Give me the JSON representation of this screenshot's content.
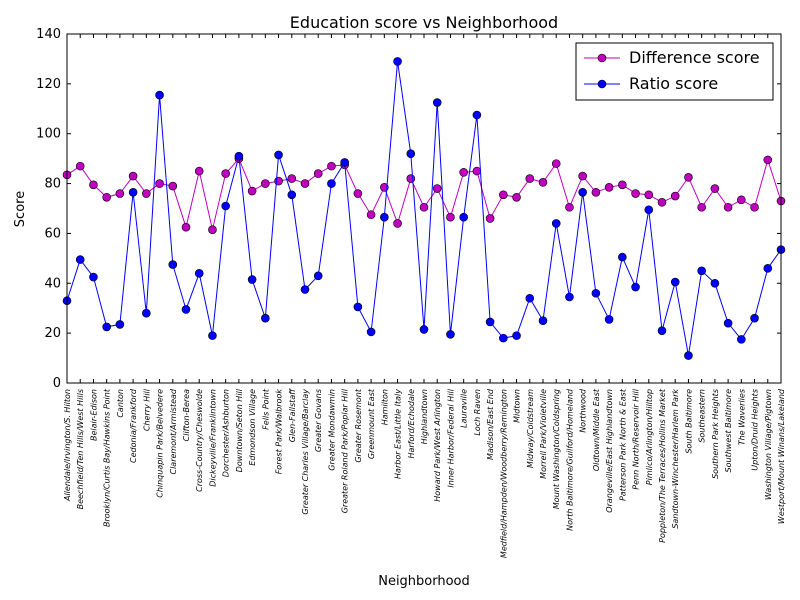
{
  "chart_data": {
    "type": "line",
    "title": "Education score vs Neighborhood",
    "xlabel": "Neighborhood",
    "ylabel": "Score",
    "ylim": [
      0,
      140
    ],
    "yticks": [
      0,
      20,
      40,
      60,
      80,
      100,
      120,
      140
    ],
    "grid": false,
    "legend_position": "top-right",
    "categories": [
      "Allendale/Irvington/S. Hilton",
      "Beechfield/Ten Hills/West Hills",
      "Belair-Edison",
      "Brooklyn/Curtis Bay/Hawkins Point",
      "Canton",
      "Cedonia/Frankford",
      "Cherry Hill",
      "Chinquapin Park/Belvedere",
      "Claremont/Armistead",
      "Clifton-Berea",
      "Cross-Country/Cheswolde",
      "Dickeyville/Franklintown",
      "Dorchester/Ashburton",
      "Downtown/Seton Hill",
      "Edmondson Village",
      "Fells Point",
      "Forest Park/Walbrook",
      "Glen-Fallstaff",
      "Greater Charles Village/Barclay",
      "Greater Govans",
      "Greater Mondawmin",
      "Greater Roland Park/Poplar Hill",
      "Greater Rosemont",
      "Greenmount East",
      "Hamilton",
      "Harbor East/Little Italy",
      "Harford/Echodale",
      "Highlandtown",
      "Howard Park/West Arlington",
      "Inner Harbor/Federal Hill",
      "Lauraville",
      "Loch Raven",
      "Madison/East End",
      "Medfield/Hampden/Woodberry/Remington",
      "Midtown",
      "Midway/Coldstream",
      "Morrell Park/Violetville",
      "Mount Washington/Coldspring",
      "North Baltimore/Guilford/Homeland",
      "Northwood",
      "Oldtown/Middle East",
      "Orangeville/East Highlandtown",
      "Patterson Park North & East",
      "Penn North/Reservoir Hill",
      "Pimlico/Arlington/Hilltop",
      "Poppleton/The Terraces/Hollins Market",
      "Sandtown-Winchester/Harlem Park",
      "South Baltimore",
      "Southeastern",
      "Southern Park Heights",
      "Southwest Baltimore",
      "The Waverlies",
      "Upton/Druid Heights",
      "Washington Village/Pigtown",
      "Westport/Mount Winans/Lakeland"
    ],
    "series": [
      {
        "name": "Difference score",
        "color": "#bf00bf",
        "marker": "circle",
        "values": [
          83.5,
          87,
          79.5,
          74.5,
          76,
          83,
          76,
          80,
          79,
          62.5,
          85,
          61.5,
          84,
          90,
          77,
          80,
          81,
          82,
          80,
          84,
          87,
          87.5,
          76,
          67.5,
          78.5,
          64,
          82,
          70.5,
          78,
          66.5,
          84.5,
          85,
          66,
          75.5,
          74.5,
          82,
          80.5,
          88,
          70.5,
          83,
          76.5,
          78.5,
          79.5,
          76,
          75.5,
          72.5,
          75,
          82.5,
          70.5,
          78,
          70.5,
          73.5,
          70.5,
          89.5,
          73
        ]
      },
      {
        "name": "Ratio score",
        "color": "#0000ff",
        "marker": "circle",
        "values": [
          33,
          49.5,
          42.5,
          22.5,
          23.5,
          76.5,
          28,
          115.5,
          47.5,
          29.5,
          44,
          19,
          71,
          91,
          41.5,
          26,
          91.5,
          75.5,
          37.5,
          43,
          80,
          88.5,
          30.5,
          20.5,
          66.5,
          129,
          92,
          21.5,
          112.5,
          19.5,
          66.5,
          107.5,
          24.5,
          18,
          19,
          34,
          25,
          64,
          34.5,
          76.5,
          36,
          25.5,
          50.5,
          38.5,
          69.5,
          21,
          40.5,
          11,
          45,
          40,
          24,
          17.5,
          26,
          46,
          53.5
        ]
      }
    ]
  }
}
